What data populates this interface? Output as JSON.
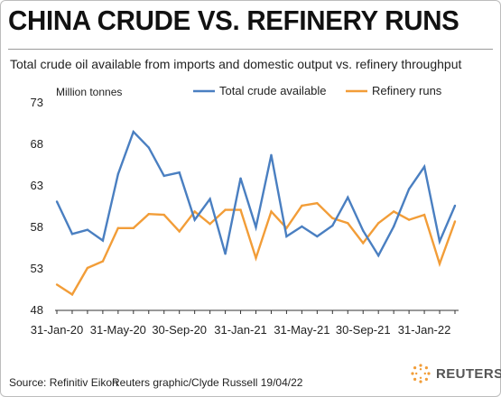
{
  "title": "CHINA CRUDE VS. REFINERY RUNS",
  "subtitle": "Total crude oil available from imports and domestic output vs. refinery throughput",
  "footer": {
    "source": "Source: Refinitiv Eikon",
    "credit": "Reuters graphic/Clyde Russell 19/04/22",
    "logo_text": "REUTERS"
  },
  "chart_data": {
    "type": "line",
    "ylabel": "Million tonnes",
    "ylim": [
      48,
      73
    ],
    "yticks": [
      48,
      53,
      58,
      63,
      68,
      73
    ],
    "xtick_labels": [
      "31-Jan-20",
      "31-May-20",
      "30-Sep-20",
      "31-Jan-21",
      "31-May-21",
      "30-Sep-21",
      "31-Jan-22"
    ],
    "grid": false,
    "legend_position": "top",
    "x": [
      "2020-01",
      "2020-02",
      "2020-03",
      "2020-04",
      "2020-05",
      "2020-06",
      "2020-07",
      "2020-08",
      "2020-09",
      "2020-10",
      "2020-11",
      "2020-12",
      "2021-01",
      "2021-02",
      "2021-03",
      "2021-04",
      "2021-05",
      "2021-06",
      "2021-07",
      "2021-08",
      "2021-09",
      "2021-10",
      "2021-11",
      "2021-12",
      "2022-01",
      "2022-02",
      "2022-03"
    ],
    "series": [
      {
        "name": "Total crude available",
        "color": "#4a7fc1",
        "values": [
          61.0,
          57.1,
          57.6,
          56.3,
          64.3,
          69.4,
          67.5,
          64.1,
          64.5,
          58.8,
          61.3,
          54.7,
          63.8,
          57.9,
          66.6,
          56.8,
          58.0,
          56.8,
          58.1,
          61.5,
          57.5,
          54.5,
          58.0,
          62.5,
          65.2,
          56.2,
          60.5
        ]
      },
      {
        "name": "Refinery runs",
        "color": "#f29d38",
        "values": [
          51.0,
          49.8,
          53.0,
          53.8,
          57.8,
          57.8,
          59.5,
          59.4,
          57.4,
          59.8,
          58.3,
          60.0,
          60.0,
          54.2,
          59.8,
          57.8,
          60.5,
          60.8,
          59.0,
          58.4,
          56.0,
          58.4,
          59.8,
          58.8,
          59.4,
          53.5,
          58.6
        ]
      }
    ]
  }
}
